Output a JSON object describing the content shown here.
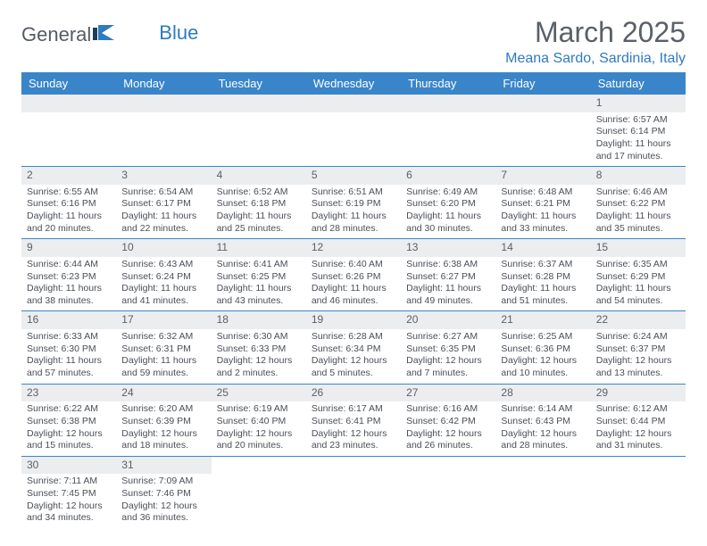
{
  "brand": {
    "part1": "General",
    "part2": "Blue"
  },
  "title": "March 2025",
  "location": "Meana Sardo, Sardinia, Italy",
  "colors": {
    "header_bg": "#3a85c9",
    "header_text": "#ffffff",
    "accent": "#2f7bbf",
    "daynum_bg": "#ecedef",
    "body_text": "#4a4f57",
    "title_text": "#5a6068"
  },
  "day_headers": [
    "Sunday",
    "Monday",
    "Tuesday",
    "Wednesday",
    "Thursday",
    "Friday",
    "Saturday"
  ],
  "weeks": [
    [
      {
        "n": "",
        "sr": "",
        "ss": "",
        "dl": ""
      },
      {
        "n": "",
        "sr": "",
        "ss": "",
        "dl": ""
      },
      {
        "n": "",
        "sr": "",
        "ss": "",
        "dl": ""
      },
      {
        "n": "",
        "sr": "",
        "ss": "",
        "dl": ""
      },
      {
        "n": "",
        "sr": "",
        "ss": "",
        "dl": ""
      },
      {
        "n": "",
        "sr": "",
        "ss": "",
        "dl": ""
      },
      {
        "n": "1",
        "sr": "Sunrise: 6:57 AM",
        "ss": "Sunset: 6:14 PM",
        "dl": "Daylight: 11 hours and 17 minutes."
      }
    ],
    [
      {
        "n": "2",
        "sr": "Sunrise: 6:55 AM",
        "ss": "Sunset: 6:16 PM",
        "dl": "Daylight: 11 hours and 20 minutes."
      },
      {
        "n": "3",
        "sr": "Sunrise: 6:54 AM",
        "ss": "Sunset: 6:17 PM",
        "dl": "Daylight: 11 hours and 22 minutes."
      },
      {
        "n": "4",
        "sr": "Sunrise: 6:52 AM",
        "ss": "Sunset: 6:18 PM",
        "dl": "Daylight: 11 hours and 25 minutes."
      },
      {
        "n": "5",
        "sr": "Sunrise: 6:51 AM",
        "ss": "Sunset: 6:19 PM",
        "dl": "Daylight: 11 hours and 28 minutes."
      },
      {
        "n": "6",
        "sr": "Sunrise: 6:49 AM",
        "ss": "Sunset: 6:20 PM",
        "dl": "Daylight: 11 hours and 30 minutes."
      },
      {
        "n": "7",
        "sr": "Sunrise: 6:48 AM",
        "ss": "Sunset: 6:21 PM",
        "dl": "Daylight: 11 hours and 33 minutes."
      },
      {
        "n": "8",
        "sr": "Sunrise: 6:46 AM",
        "ss": "Sunset: 6:22 PM",
        "dl": "Daylight: 11 hours and 35 minutes."
      }
    ],
    [
      {
        "n": "9",
        "sr": "Sunrise: 6:44 AM",
        "ss": "Sunset: 6:23 PM",
        "dl": "Daylight: 11 hours and 38 minutes."
      },
      {
        "n": "10",
        "sr": "Sunrise: 6:43 AM",
        "ss": "Sunset: 6:24 PM",
        "dl": "Daylight: 11 hours and 41 minutes."
      },
      {
        "n": "11",
        "sr": "Sunrise: 6:41 AM",
        "ss": "Sunset: 6:25 PM",
        "dl": "Daylight: 11 hours and 43 minutes."
      },
      {
        "n": "12",
        "sr": "Sunrise: 6:40 AM",
        "ss": "Sunset: 6:26 PM",
        "dl": "Daylight: 11 hours and 46 minutes."
      },
      {
        "n": "13",
        "sr": "Sunrise: 6:38 AM",
        "ss": "Sunset: 6:27 PM",
        "dl": "Daylight: 11 hours and 49 minutes."
      },
      {
        "n": "14",
        "sr": "Sunrise: 6:37 AM",
        "ss": "Sunset: 6:28 PM",
        "dl": "Daylight: 11 hours and 51 minutes."
      },
      {
        "n": "15",
        "sr": "Sunrise: 6:35 AM",
        "ss": "Sunset: 6:29 PM",
        "dl": "Daylight: 11 hours and 54 minutes."
      }
    ],
    [
      {
        "n": "16",
        "sr": "Sunrise: 6:33 AM",
        "ss": "Sunset: 6:30 PM",
        "dl": "Daylight: 11 hours and 57 minutes."
      },
      {
        "n": "17",
        "sr": "Sunrise: 6:32 AM",
        "ss": "Sunset: 6:31 PM",
        "dl": "Daylight: 11 hours and 59 minutes."
      },
      {
        "n": "18",
        "sr": "Sunrise: 6:30 AM",
        "ss": "Sunset: 6:33 PM",
        "dl": "Daylight: 12 hours and 2 minutes."
      },
      {
        "n": "19",
        "sr": "Sunrise: 6:28 AM",
        "ss": "Sunset: 6:34 PM",
        "dl": "Daylight: 12 hours and 5 minutes."
      },
      {
        "n": "20",
        "sr": "Sunrise: 6:27 AM",
        "ss": "Sunset: 6:35 PM",
        "dl": "Daylight: 12 hours and 7 minutes."
      },
      {
        "n": "21",
        "sr": "Sunrise: 6:25 AM",
        "ss": "Sunset: 6:36 PM",
        "dl": "Daylight: 12 hours and 10 minutes."
      },
      {
        "n": "22",
        "sr": "Sunrise: 6:24 AM",
        "ss": "Sunset: 6:37 PM",
        "dl": "Daylight: 12 hours and 13 minutes."
      }
    ],
    [
      {
        "n": "23",
        "sr": "Sunrise: 6:22 AM",
        "ss": "Sunset: 6:38 PM",
        "dl": "Daylight: 12 hours and 15 minutes."
      },
      {
        "n": "24",
        "sr": "Sunrise: 6:20 AM",
        "ss": "Sunset: 6:39 PM",
        "dl": "Daylight: 12 hours and 18 minutes."
      },
      {
        "n": "25",
        "sr": "Sunrise: 6:19 AM",
        "ss": "Sunset: 6:40 PM",
        "dl": "Daylight: 12 hours and 20 minutes."
      },
      {
        "n": "26",
        "sr": "Sunrise: 6:17 AM",
        "ss": "Sunset: 6:41 PM",
        "dl": "Daylight: 12 hours and 23 minutes."
      },
      {
        "n": "27",
        "sr": "Sunrise: 6:16 AM",
        "ss": "Sunset: 6:42 PM",
        "dl": "Daylight: 12 hours and 26 minutes."
      },
      {
        "n": "28",
        "sr": "Sunrise: 6:14 AM",
        "ss": "Sunset: 6:43 PM",
        "dl": "Daylight: 12 hours and 28 minutes."
      },
      {
        "n": "29",
        "sr": "Sunrise: 6:12 AM",
        "ss": "Sunset: 6:44 PM",
        "dl": "Daylight: 12 hours and 31 minutes."
      }
    ],
    [
      {
        "n": "30",
        "sr": "Sunrise: 7:11 AM",
        "ss": "Sunset: 7:45 PM",
        "dl": "Daylight: 12 hours and 34 minutes."
      },
      {
        "n": "31",
        "sr": "Sunrise: 7:09 AM",
        "ss": "Sunset: 7:46 PM",
        "dl": "Daylight: 12 hours and 36 minutes."
      },
      {
        "n": "",
        "sr": "",
        "ss": "",
        "dl": ""
      },
      {
        "n": "",
        "sr": "",
        "ss": "",
        "dl": ""
      },
      {
        "n": "",
        "sr": "",
        "ss": "",
        "dl": ""
      },
      {
        "n": "",
        "sr": "",
        "ss": "",
        "dl": ""
      },
      {
        "n": "",
        "sr": "",
        "ss": "",
        "dl": ""
      }
    ]
  ]
}
